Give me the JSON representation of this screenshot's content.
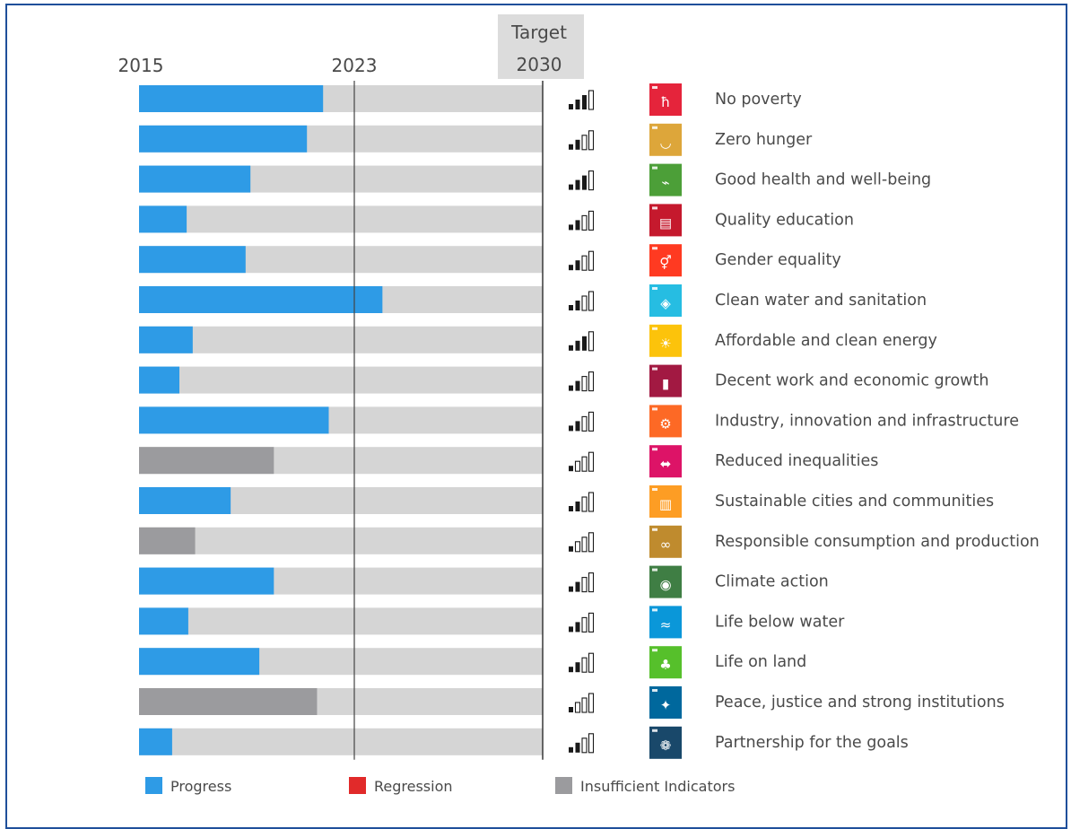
{
  "colors": {
    "progress": "#2e9be6",
    "regression": "#e12a2a",
    "insufficient": "#9b9b9e",
    "track": "#d5d5d5",
    "axis_line": "#444444",
    "target_bg": "#dcdcdc",
    "text": "#4a4a4a",
    "icon_bar_filled": "#1a1a1a",
    "icon_bar_empty": "#ffffff"
  },
  "chart_data": {
    "type": "bar",
    "orientation": "horizontal",
    "x_ticks": [
      {
        "year": 2015,
        "label": "2015"
      },
      {
        "year": 2023,
        "label": "2023"
      },
      {
        "year": 2030,
        "label_top": "Target",
        "label_bottom": "2030"
      }
    ],
    "xlim": [
      2015,
      2030
    ],
    "categories": [
      "No poverty",
      "Zero hunger",
      "Good health and well-being",
      "Quality education",
      "Gender equality",
      "Clean water and sanitation",
      "Affordable and clean energy",
      "Decent work and economic growth",
      "Industry, innovation and infrastructure",
      "Reduced inequalities",
      "Sustainable cities and communities",
      "Responsible consumption and production",
      "Climate action",
      "Life below water",
      "Life on land",
      "Peace, justice and strong institutions",
      "Partnership for the goals"
    ],
    "values": [
      45.6,
      41.6,
      27.6,
      11.8,
      26.4,
      60.3,
      13.3,
      10,
      47,
      33.4,
      22.7,
      13.9,
      33.4,
      12.2,
      29.8,
      44.1,
      8.2
    ],
    "status": [
      "progress",
      "progress",
      "progress",
      "progress",
      "progress",
      "progress",
      "progress",
      "progress",
      "progress",
      "insufficient",
      "progress",
      "insufficient",
      "progress",
      "progress",
      "progress",
      "insufficient",
      "progress"
    ],
    "signal_level": [
      3,
      2,
      3,
      2,
      2,
      2,
      3,
      2,
      2,
      1,
      2,
      1,
      2,
      2,
      2,
      1,
      2
    ],
    "goal_icon_colors": [
      "#e5243b",
      "#dda63a",
      "#4c9f38",
      "#c5192d",
      "#ff3a21",
      "#26bde2",
      "#fcc30b",
      "#a21942",
      "#fd6925",
      "#dd1367",
      "#fd9d24",
      "#bf8b2e",
      "#3f7e44",
      "#0a97d9",
      "#56c02b",
      "#00689d",
      "#19486a"
    ],
    "goal_icon_glyphs": [
      "ħ",
      "◡",
      "⌁",
      "▤",
      "⚥",
      "◈",
      "☀",
      "▮",
      "⚙",
      "⬌",
      "▥",
      "∞",
      "◉",
      "≈",
      "♣",
      "✦",
      "❁"
    ],
    "legend": [
      {
        "label": "Progress",
        "color": "#2e9be6"
      },
      {
        "label": "Regression",
        "color": "#e12a2a"
      },
      {
        "label": "Insufficient Indicators",
        "color": "#9b9b9e"
      }
    ],
    "legend_position": "bottom"
  }
}
